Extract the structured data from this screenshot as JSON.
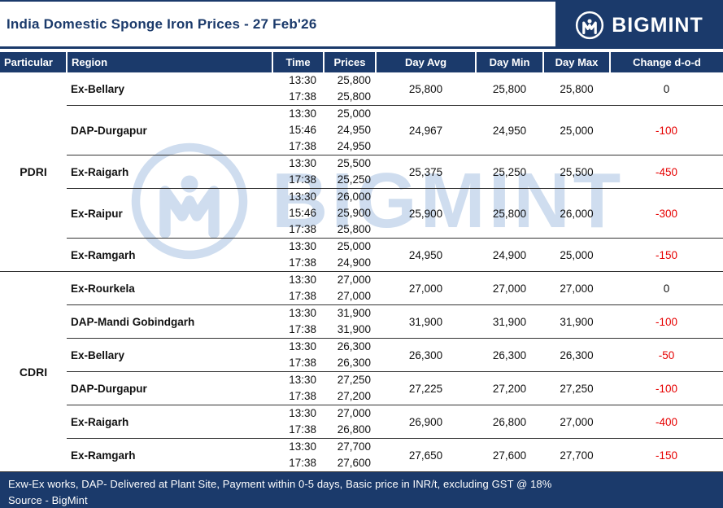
{
  "header": {
    "title": "India Domestic Sponge Iron Prices - 27 Feb'26",
    "brand": "BIGMINT"
  },
  "watermark": {
    "brand": "BIGMINT"
  },
  "table": {
    "columns": [
      "Particular",
      "Region",
      "Time",
      "Prices",
      "Day Avg",
      "Day Min",
      "Day Max",
      "Change d-o-d"
    ],
    "groups": [
      {
        "particular": "PDRI",
        "rows": [
          {
            "region": "Ex-Bellary",
            "entries": [
              {
                "time": "13:30",
                "price": "25,800"
              },
              {
                "time": "17:38",
                "price": "25,800"
              }
            ],
            "day_avg": "25,800",
            "day_min": "25,800",
            "day_max": "25,800",
            "change": "0"
          },
          {
            "region": "DAP-Durgapur",
            "entries": [
              {
                "time": "13:30",
                "price": "25,000"
              },
              {
                "time": "15:46",
                "price": "24,950"
              },
              {
                "time": "17:38",
                "price": "24,950"
              }
            ],
            "day_avg": "24,967",
            "day_min": "24,950",
            "day_max": "25,000",
            "change": "-100"
          },
          {
            "region": "Ex-Raigarh",
            "entries": [
              {
                "time": "13:30",
                "price": "25,500"
              },
              {
                "time": "17:38",
                "price": "25,250"
              }
            ],
            "day_avg": "25,375",
            "day_min": "25,250",
            "day_max": "25,500",
            "change": "-450"
          },
          {
            "region": "Ex-Raipur",
            "entries": [
              {
                "time": "13:30",
                "price": "26,000"
              },
              {
                "time": "15:46",
                "price": "25,900"
              },
              {
                "time": "17:38",
                "price": "25,800"
              }
            ],
            "day_avg": "25,900",
            "day_min": "25,800",
            "day_max": "26,000",
            "change": "-300"
          },
          {
            "region": "Ex-Ramgarh",
            "entries": [
              {
                "time": "13:30",
                "price": "25,000"
              },
              {
                "time": "17:38",
                "price": "24,900"
              }
            ],
            "day_avg": "24,950",
            "day_min": "24,900",
            "day_max": "25,000",
            "change": "-150"
          }
        ]
      },
      {
        "particular": "CDRI",
        "rows": [
          {
            "region": "Ex-Rourkela",
            "entries": [
              {
                "time": "13:30",
                "price": "27,000"
              },
              {
                "time": "17:38",
                "price": "27,000"
              }
            ],
            "day_avg": "27,000",
            "day_min": "27,000",
            "day_max": "27,000",
            "change": "0"
          },
          {
            "region": "DAP-Mandi Gobindgarh",
            "entries": [
              {
                "time": "13:30",
                "price": "31,900"
              },
              {
                "time": "17:38",
                "price": "31,900"
              }
            ],
            "day_avg": "31,900",
            "day_min": "31,900",
            "day_max": "31,900",
            "change": "-100"
          },
          {
            "region": "Ex-Bellary",
            "entries": [
              {
                "time": "13:30",
                "price": "26,300"
              },
              {
                "time": "17:38",
                "price": "26,300"
              }
            ],
            "day_avg": "26,300",
            "day_min": "26,300",
            "day_max": "26,300",
            "change": "-50"
          },
          {
            "region": "DAP-Durgapur",
            "entries": [
              {
                "time": "13:30",
                "price": "27,250"
              },
              {
                "time": "17:38",
                "price": "27,200"
              }
            ],
            "day_avg": "27,225",
            "day_min": "27,200",
            "day_max": "27,250",
            "change": "-100"
          },
          {
            "region": "Ex-Raigarh",
            "entries": [
              {
                "time": "13:30",
                "price": "27,000"
              },
              {
                "time": "17:38",
                "price": "26,800"
              }
            ],
            "day_avg": "26,900",
            "day_min": "26,800",
            "day_max": "27,000",
            "change": "-400"
          },
          {
            "region": "Ex-Ramgarh",
            "entries": [
              {
                "time": "13:30",
                "price": "27,700"
              },
              {
                "time": "17:38",
                "price": "27,600"
              }
            ],
            "day_avg": "27,650",
            "day_min": "27,600",
            "day_max": "27,700",
            "change": "-150"
          }
        ]
      }
    ]
  },
  "footer": {
    "line1": "Exw-Ex works, DAP- Delivered at Plant Site, Payment within 0-5 days, Basic price in INR/t, excluding GST @ 18%",
    "line2": "Source - BigMint"
  },
  "colors": {
    "navy": "#1b3a6b",
    "negative_red": "#e60000",
    "watermark_blue": "#a9c3e2"
  }
}
